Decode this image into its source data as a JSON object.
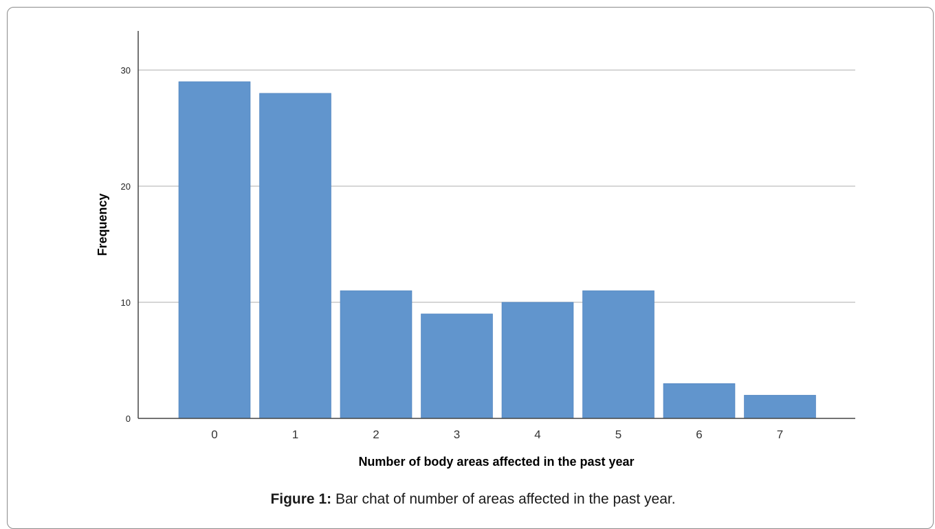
{
  "chart_data": {
    "type": "bar",
    "categories": [
      "0",
      "1",
      "2",
      "3",
      "4",
      "5",
      "6",
      "7"
    ],
    "values": [
      29,
      28,
      11,
      9,
      10,
      11,
      3,
      2
    ],
    "title": "",
    "xlabel": "Number of body areas affected in the past year",
    "ylabel": "Frequency",
    "ylim": [
      0,
      30
    ],
    "yticks": [
      "0",
      "10",
      "20",
      "30"
    ],
    "grid": true,
    "bar_color": "#6195cd"
  },
  "caption": {
    "label": "Figure 1:",
    "text": " Bar chat of number of areas affected in the past year."
  }
}
